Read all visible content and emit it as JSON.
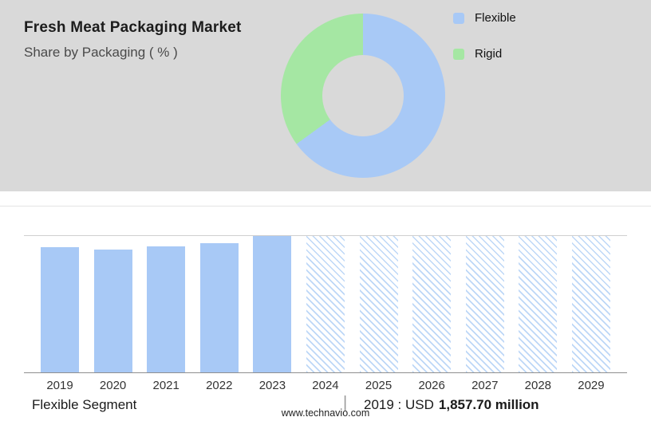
{
  "header": {
    "title": "Fresh Meat Packaging Market",
    "subtitle": "Share by Packaging ( % )"
  },
  "legend": [
    {
      "label": "Flexible",
      "color": "#a8c9f6"
    },
    {
      "label": "Rigid",
      "color": "#a5e7a3"
    }
  ],
  "chart_data": [
    {
      "type": "pie",
      "title": "Share by Packaging ( % )",
      "donut": true,
      "labels": [
        "Flexible",
        "Rigid"
      ],
      "values": [
        65,
        35
      ],
      "colors": [
        "#a8c9f6",
        "#a5e7a3"
      ],
      "legend_position": "right"
    },
    {
      "type": "bar",
      "title": "Flexible Segment market size by year (USD million)",
      "categories": [
        "2019",
        "2020",
        "2021",
        "2022",
        "2023",
        "2024",
        "2025",
        "2026",
        "2027",
        "2028",
        "2029"
      ],
      "known_values": {
        "2019": 1857.7
      },
      "unit": "USD million",
      "bars": [
        {
          "year": "2019",
          "height_pct": 92,
          "style": "solid"
        },
        {
          "year": "2020",
          "height_pct": 90,
          "style": "solid"
        },
        {
          "year": "2021",
          "height_pct": 92.5,
          "style": "solid"
        },
        {
          "year": "2022",
          "height_pct": 95,
          "style": "solid"
        },
        {
          "year": "2023",
          "height_pct": 100,
          "style": "solid"
        },
        {
          "year": "2024",
          "height_pct": 100,
          "style": "hatched"
        },
        {
          "year": "2025",
          "height_pct": 100,
          "style": "hatched"
        },
        {
          "year": "2026",
          "height_pct": 100,
          "style": "hatched"
        },
        {
          "year": "2027",
          "height_pct": 100,
          "style": "hatched"
        },
        {
          "year": "2028",
          "height_pct": 100,
          "style": "hatched"
        },
        {
          "year": "2029",
          "height_pct": 100,
          "style": "hatched"
        }
      ],
      "bar_color": "#a8c9f6",
      "hatch_color": "#bdd7f7",
      "grid": false,
      "legend_position": "none"
    }
  ],
  "footer": {
    "segment_label": "Flexible Segment",
    "divider": "|",
    "value_prefix": "2019 : USD",
    "value_bold": "1,857.70 million",
    "website": "www.technavio.com"
  }
}
